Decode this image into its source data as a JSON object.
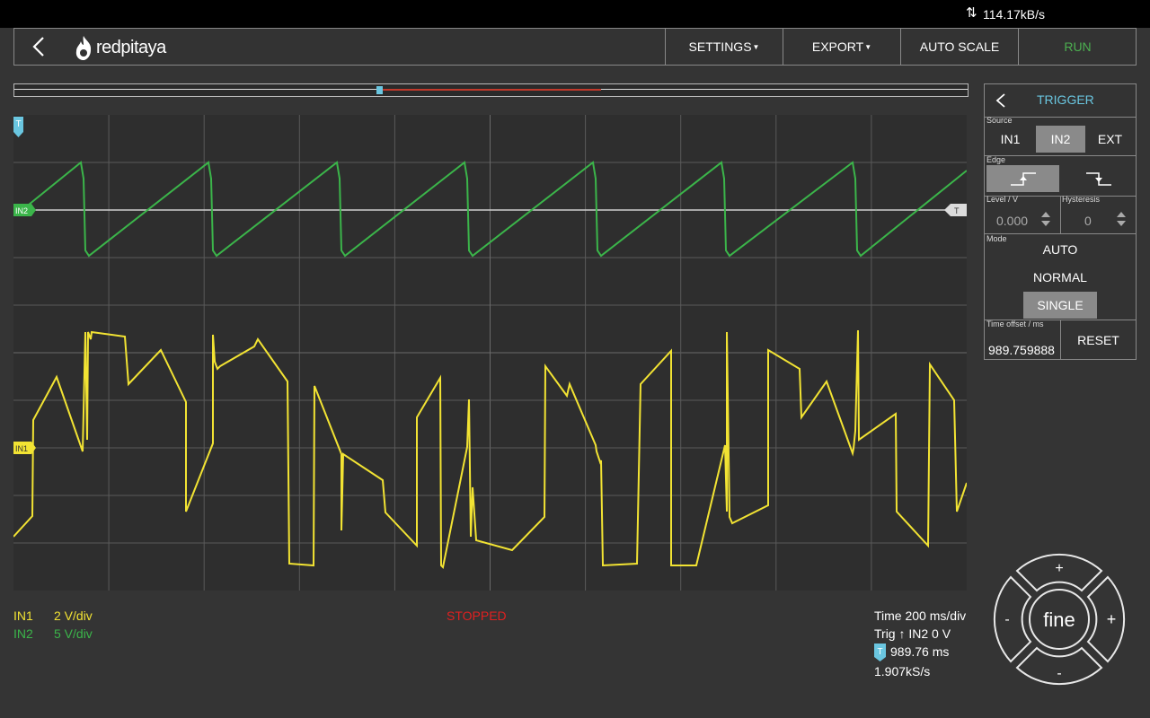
{
  "status_bar": {
    "data_rate": "114.17kB/s"
  },
  "nav": {
    "logo_text": "redpitaya",
    "settings": "SETTINGS",
    "export": "EXPORT",
    "auto_scale": "AUTO SCALE",
    "run": "RUN"
  },
  "trigger_panel": {
    "title": "TRIGGER",
    "source_label": "Source",
    "sources": [
      "IN1",
      "IN2",
      "EXT"
    ],
    "selected_source": "IN2",
    "edge_label": "Edge",
    "selected_edge": "rising",
    "level_label": "Level / V",
    "level_value": "0.000",
    "hysteresis_label": "Hysteresis",
    "hysteresis_value": "0",
    "mode_label": "Mode",
    "modes": [
      "AUTO",
      "NORMAL",
      "SINGLE"
    ],
    "selected_mode": "SINGLE",
    "time_offset_label": "Time offset / ms",
    "time_offset_value": "989.759888",
    "reset": "RESET"
  },
  "plot": {
    "in2_marker": "IN2",
    "in1_marker": "IN1",
    "trigger_marker": "T",
    "colors": {
      "in1": "#f2e333",
      "in2": "#3bb54a",
      "grid": "#5a5a5a"
    }
  },
  "footer": {
    "in1_label": "IN1",
    "in1_scale": "2 V/div",
    "in2_label": "IN2",
    "in2_scale": "5 V/div",
    "state": "STOPPED",
    "time_div": "Time 200 ms/div",
    "trig": "Trig ↑ IN2 0 V",
    "t_badge": "T",
    "offset": "989.76 ms",
    "sample_rate": "1.907kS/s"
  },
  "joystick": {
    "center": "fine",
    "up": "+",
    "down": "-",
    "left": "-",
    "right": "+"
  }
}
